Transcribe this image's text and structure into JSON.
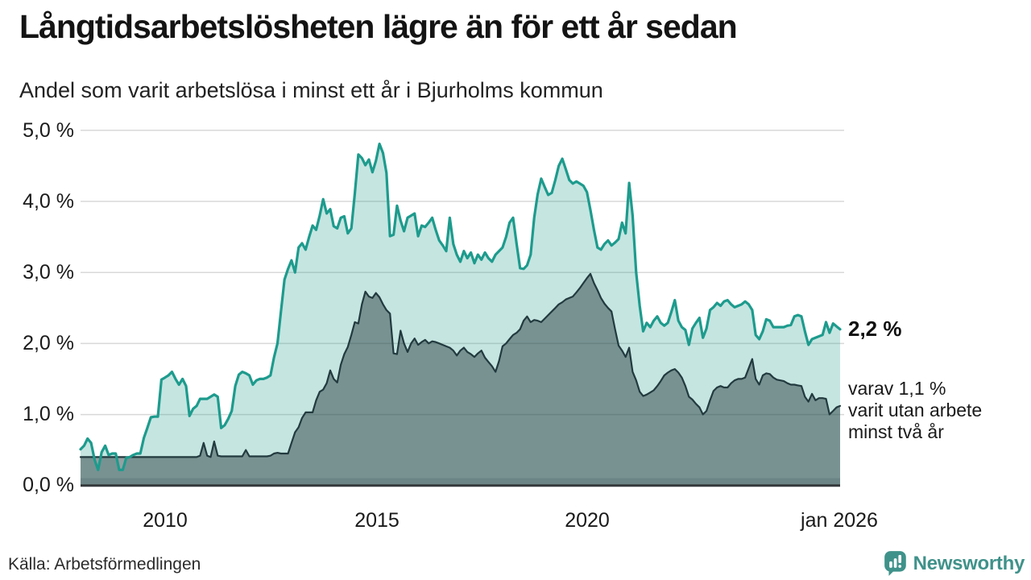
{
  "header": {
    "title": "Långtidsarbetslösheten lägre än för ett år sedan",
    "subtitle": "Andel som varit arbetslösa i minst ett år i Bjurholms kommun"
  },
  "colors": {
    "accent_teal": "#1d9b8d",
    "dark_slate": "#223a3e",
    "light_fill": "rgba(30,154,140,0.26)",
    "dark_fill": "rgba(35,56,60,0.48)",
    "grid": "#d8d8d8",
    "axis": "#35393b",
    "brand_teal": "#3f928a"
  },
  "chart_data": {
    "type": "area",
    "title": "Långtidsarbetslösheten lägre än för ett år sedan",
    "subtitle": "Andel som varit arbetslösa i minst ett år i Bjurholms kommun",
    "x_start_year": 2008,
    "x_end_label": "jan 2026",
    "x_resolution": "monthly",
    "grid": true,
    "legend_position": "none",
    "ylim": [
      0,
      5
    ],
    "y_tick_labels": [
      "5,0 %",
      "4,0 %",
      "3,0 %",
      "2,0 %",
      "1,0 %",
      "0,0 %"
    ],
    "x_tick_labels": [
      "2010",
      "2015",
      "2020",
      "jan 2026"
    ],
    "x_tick_years": [
      2010,
      2015,
      2020,
      2026
    ],
    "series": [
      {
        "name": "Arbetslösa minst ett år",
        "color": "#1d9b8d",
        "fill": "rgba(30,154,140,0.26)",
        "stroke_width": 3.2,
        "last_value": 2.2,
        "values": [
          0.51,
          0.56,
          0.66,
          0.6,
          0.36,
          0.22,
          0.47,
          0.56,
          0.43,
          0.45,
          0.45,
          0.22,
          0.22,
          0.39,
          0.4,
          0.43,
          0.45,
          0.45,
          0.67,
          0.81,
          0.96,
          0.97,
          0.97,
          1.49,
          1.52,
          1.55,
          1.6,
          1.5,
          1.42,
          1.5,
          1.4,
          0.98,
          1.08,
          1.12,
          1.22,
          1.22,
          1.22,
          1.25,
          1.28,
          1.25,
          0.81,
          0.85,
          0.94,
          1.05,
          1.4,
          1.56,
          1.6,
          1.58,
          1.55,
          1.42,
          1.48,
          1.5,
          1.5,
          1.52,
          1.55,
          1.8,
          2.0,
          2.45,
          2.9,
          3.05,
          3.17,
          3.0,
          3.35,
          3.41,
          3.32,
          3.5,
          3.66,
          3.6,
          3.8,
          4.03,
          3.83,
          3.89,
          3.65,
          3.62,
          3.77,
          3.79,
          3.55,
          3.62,
          4.11,
          4.66,
          4.61,
          4.51,
          4.59,
          4.41,
          4.57,
          4.81,
          4.68,
          4.4,
          3.51,
          3.53,
          3.94,
          3.73,
          3.58,
          3.77,
          3.8,
          3.83,
          3.51,
          3.66,
          3.64,
          3.7,
          3.77,
          3.6,
          3.45,
          3.38,
          3.3,
          3.77,
          3.4,
          3.25,
          3.15,
          3.3,
          3.2,
          3.28,
          3.13,
          3.25,
          3.18,
          3.28,
          3.2,
          3.15,
          3.25,
          3.3,
          3.35,
          3.5,
          3.7,
          3.77,
          3.4,
          3.06,
          3.05,
          3.1,
          3.25,
          3.77,
          4.1,
          4.32,
          4.2,
          4.09,
          4.12,
          4.3,
          4.5,
          4.6,
          4.45,
          4.3,
          4.25,
          4.28,
          4.25,
          4.22,
          4.13,
          3.88,
          3.6,
          3.35,
          3.32,
          3.4,
          3.45,
          3.38,
          3.42,
          3.47,
          3.7,
          3.55,
          4.26,
          3.8,
          3.0,
          2.53,
          2.17,
          2.29,
          2.23,
          2.32,
          2.38,
          2.29,
          2.25,
          2.29,
          2.44,
          2.61,
          2.32,
          2.23,
          2.19,
          1.98,
          2.21,
          2.29,
          2.36,
          2.08,
          2.21,
          2.47,
          2.51,
          2.57,
          2.53,
          2.59,
          2.61,
          2.55,
          2.51,
          2.53,
          2.55,
          2.59,
          2.55,
          2.47,
          2.12,
          2.06,
          2.17,
          2.34,
          2.32,
          2.23,
          2.23,
          2.23,
          2.23,
          2.25,
          2.26,
          2.38,
          2.4,
          2.38,
          2.17,
          1.98,
          2.06,
          2.08,
          2.1,
          2.12,
          2.3,
          2.15,
          2.28,
          2.24,
          2.2
        ]
      },
      {
        "name": "varav utan arbete minst två år",
        "color": "#223a3e",
        "fill": "rgba(35,56,60,0.48)",
        "stroke_width": 2.2,
        "last_value": 1.1,
        "values": [
          0.4,
          0.4,
          0.4,
          0.4,
          0.4,
          0.4,
          0.4,
          0.4,
          0.4,
          0.4,
          0.4,
          0.4,
          0.4,
          0.4,
          0.4,
          0.4,
          0.4,
          0.4,
          0.4,
          0.4,
          0.4,
          0.4,
          0.4,
          0.4,
          0.4,
          0.4,
          0.4,
          0.4,
          0.4,
          0.4,
          0.4,
          0.4,
          0.4,
          0.4,
          0.42,
          0.6,
          0.42,
          0.4,
          0.62,
          0.42,
          0.41,
          0.41,
          0.41,
          0.41,
          0.41,
          0.41,
          0.41,
          0.5,
          0.41,
          0.41,
          0.41,
          0.41,
          0.41,
          0.41,
          0.42,
          0.45,
          0.46,
          0.45,
          0.45,
          0.45,
          0.6,
          0.75,
          0.82,
          0.95,
          1.03,
          1.03,
          1.03,
          1.2,
          1.32,
          1.35,
          1.44,
          1.62,
          1.5,
          1.45,
          1.7,
          1.85,
          1.95,
          2.12,
          2.3,
          2.28,
          2.55,
          2.73,
          2.66,
          2.64,
          2.71,
          2.65,
          2.55,
          2.47,
          2.42,
          1.86,
          1.85,
          2.18,
          2.0,
          1.88,
          2.0,
          2.07,
          1.98,
          2.02,
          2.05,
          2.0,
          2.03,
          2.02,
          2.0,
          1.98,
          1.96,
          1.94,
          1.9,
          1.83,
          1.9,
          1.94,
          1.88,
          1.85,
          1.81,
          1.86,
          1.9,
          1.8,
          1.74,
          1.68,
          1.6,
          1.75,
          1.96,
          2.0,
          2.06,
          2.12,
          2.15,
          2.2,
          2.32,
          2.38,
          2.3,
          2.33,
          2.32,
          2.3,
          2.35,
          2.4,
          2.45,
          2.5,
          2.55,
          2.58,
          2.62,
          2.64,
          2.66,
          2.72,
          2.78,
          2.85,
          2.92,
          2.98,
          2.85,
          2.75,
          2.64,
          2.56,
          2.5,
          2.45,
          2.2,
          1.97,
          1.9,
          1.81,
          1.94,
          1.6,
          1.48,
          1.32,
          1.26,
          1.28,
          1.31,
          1.34,
          1.4,
          1.47,
          1.55,
          1.59,
          1.62,
          1.64,
          1.59,
          1.52,
          1.4,
          1.25,
          1.21,
          1.15,
          1.1,
          1.0,
          1.05,
          1.2,
          1.33,
          1.38,
          1.4,
          1.38,
          1.38,
          1.44,
          1.48,
          1.5,
          1.5,
          1.52,
          1.65,
          1.78,
          1.5,
          1.42,
          1.55,
          1.58,
          1.57,
          1.52,
          1.49,
          1.48,
          1.47,
          1.44,
          1.42,
          1.42,
          1.41,
          1.4,
          1.25,
          1.18,
          1.29,
          1.2,
          1.23,
          1.23,
          1.22,
          1.0,
          1.05,
          1.1,
          1.12
        ]
      }
    ],
    "annotations": {
      "end_value_label": "2,2 %",
      "end_sub_lines": [
        "varav 1,1 %",
        "varit utan arbete",
        "minst två år"
      ]
    }
  },
  "footer": {
    "source": "Källa: Arbetsförmedlingen",
    "brand": "Newsworthy"
  }
}
